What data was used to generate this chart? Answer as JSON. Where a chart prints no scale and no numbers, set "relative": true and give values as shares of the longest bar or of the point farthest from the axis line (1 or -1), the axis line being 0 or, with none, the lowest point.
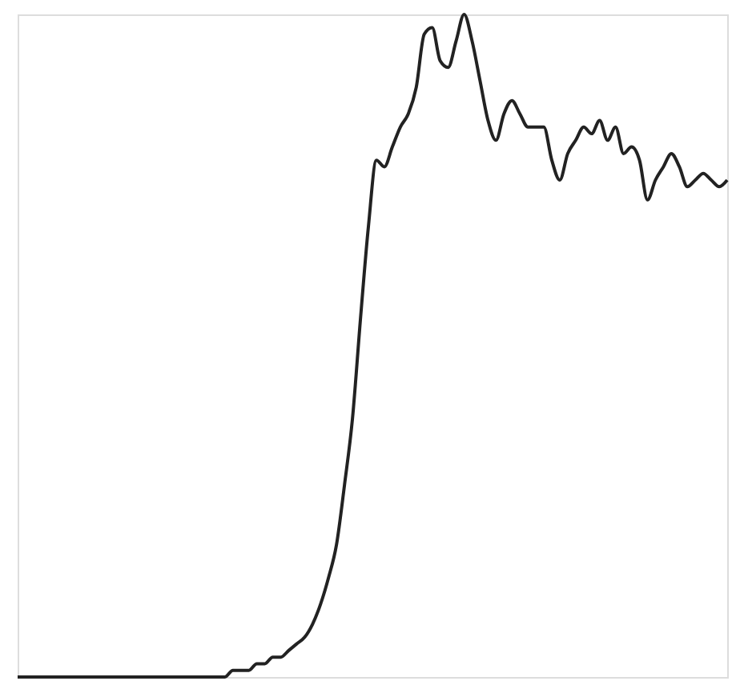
{
  "chart_data": {
    "type": "line",
    "relative": true,
    "color": "#222222",
    "categories": [
      null,
      null,
      null,
      null,
      null,
      null,
      null,
      null,
      null,
      null,
      null,
      null,
      null,
      null,
      null,
      null,
      null,
      null,
      null,
      null,
      null,
      null,
      null,
      null,
      null,
      null,
      null,
      null,
      null,
      null,
      null,
      null,
      null,
      null,
      null,
      null,
      null,
      null,
      null,
      null,
      null,
      null,
      null,
      null,
      null,
      null,
      null,
      null,
      null,
      null,
      null,
      null,
      null,
      null,
      null,
      null,
      null,
      null,
      null,
      null,
      null,
      null,
      null,
      null,
      null,
      null,
      null,
      null,
      null,
      null,
      null,
      null,
      null,
      null,
      null,
      null,
      null,
      null,
      null,
      null,
      null,
      null,
      null,
      null,
      null,
      null,
      null,
      null,
      null,
      null
    ],
    "values": [
      0,
      0,
      0,
      0,
      0,
      0,
      0,
      0,
      0,
      0,
      0,
      0,
      0,
      0,
      0,
      0,
      0,
      0,
      0,
      0,
      0,
      0,
      0,
      0,
      0,
      0,
      0,
      0.01,
      0.01,
      0.01,
      0.02,
      0.02,
      0.03,
      0.03,
      0.04,
      0.05,
      0.06,
      0.08,
      0.11,
      0.15,
      0.2,
      0.29,
      0.39,
      0.54,
      0.68,
      0.78,
      0.77,
      0.8,
      0.83,
      0.85,
      0.89,
      0.97,
      0.98,
      0.93,
      0.92,
      0.96,
      1.0,
      0.96,
      0.9,
      0.84,
      0.81,
      0.85,
      0.87,
      0.85,
      0.83,
      0.83,
      0.83,
      0.78,
      0.75,
      0.79,
      0.81,
      0.83,
      0.82,
      0.84,
      0.81,
      0.83,
      0.79,
      0.8,
      0.78,
      0.72,
      0.75,
      0.77,
      0.79,
      0.77,
      0.74,
      0.75,
      0.76,
      0.75,
      0.74,
      0.75
    ]
  }
}
